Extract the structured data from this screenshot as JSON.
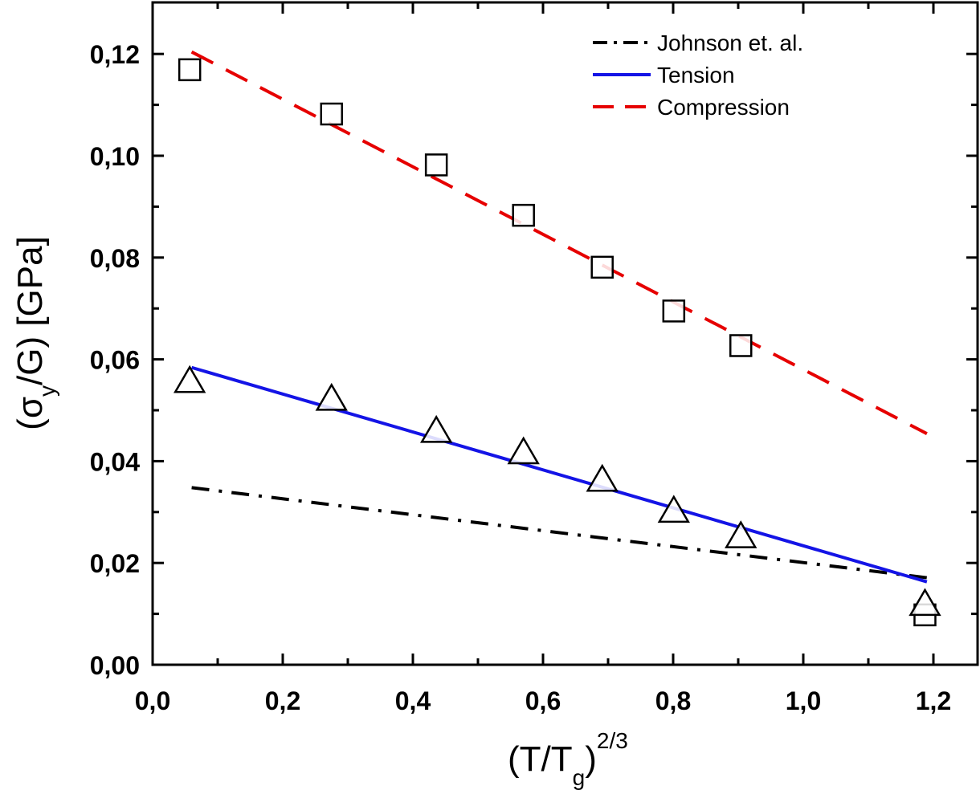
{
  "chart_data": {
    "type": "line",
    "xlabel": {
      "base": "(T/T",
      "sub": "g",
      "tail": ")",
      "sup": "2/3"
    },
    "ylabel": {
      "open": "(σ",
      "sub": "y",
      "mid": "/G) [GPa]"
    },
    "xlim": [
      0.0,
      1.25
    ],
    "ylim": [
      0.0,
      0.13
    ],
    "xticks": [
      0.0,
      0.2,
      0.4,
      0.6,
      0.8,
      1.0,
      1.2
    ],
    "xtick_labels": [
      "0,0",
      "0,2",
      "0,4",
      "0,6",
      "0,8",
      "1,0",
      "1,2"
    ],
    "yticks": [
      0.0,
      0.02,
      0.04,
      0.06,
      0.08,
      0.1,
      0.12
    ],
    "ytick_labels": [
      "0,00",
      "0,02",
      "0,04",
      "0,06",
      "0,08",
      "0,10",
      "0,12"
    ],
    "grid": false,
    "legend_position": "top-right",
    "series": [
      {
        "name": "Johnson et. al.",
        "kind": "line",
        "style": "dash-dot",
        "color": "#000000",
        "x": [
          0.06,
          1.19
        ],
        "y": [
          0.0348,
          0.0171
        ]
      },
      {
        "name": "Tension",
        "kind": "line",
        "style": "solid",
        "color": "#1414e6",
        "x": [
          0.06,
          1.19
        ],
        "y": [
          0.0584,
          0.0163
        ]
      },
      {
        "name": "Compression",
        "kind": "line",
        "style": "dashed",
        "color": "#e60000",
        "x": [
          0.06,
          1.19
        ],
        "y": [
          0.1204,
          0.0454
        ]
      }
    ],
    "markers": [
      {
        "shape": "square",
        "x": [
          0.057,
          0.275,
          0.436,
          0.57,
          0.691,
          0.801,
          0.904,
          1.187
        ],
        "y": [
          0.1169,
          0.1082,
          0.0982,
          0.0883,
          0.0781,
          0.0695,
          0.0627,
          0.0098
        ]
      },
      {
        "shape": "triangle",
        "x": [
          0.057,
          0.275,
          0.436,
          0.57,
          0.691,
          0.801,
          0.904,
          1.187
        ],
        "y": [
          0.0558,
          0.0523,
          0.046,
          0.0418,
          0.0364,
          0.0303,
          0.0253,
          0.012
        ]
      }
    ]
  }
}
